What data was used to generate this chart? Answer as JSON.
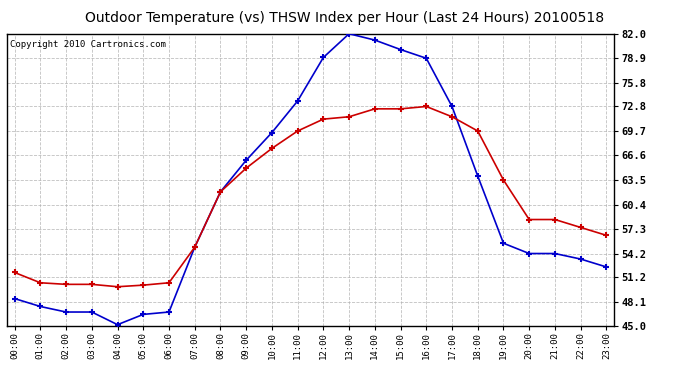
{
  "title": "Outdoor Temperature (vs) THSW Index per Hour (Last 24 Hours) 20100518",
  "copyright": "Copyright 2010 Cartronics.com",
  "hours": [
    "00:00",
    "01:00",
    "02:00",
    "03:00",
    "04:00",
    "05:00",
    "06:00",
    "07:00",
    "08:00",
    "09:00",
    "10:00",
    "11:00",
    "12:00",
    "13:00",
    "14:00",
    "15:00",
    "16:00",
    "17:00",
    "18:00",
    "19:00",
    "20:00",
    "21:00",
    "22:00",
    "23:00"
  ],
  "blue_thsw": [
    48.5,
    47.5,
    46.8,
    46.8,
    45.2,
    46.5,
    46.8,
    55.0,
    62.0,
    66.0,
    69.5,
    73.5,
    79.0,
    82.0,
    81.2,
    80.0,
    78.9,
    72.8,
    64.0,
    55.5,
    54.2,
    54.2,
    53.5,
    52.5
  ],
  "red_temp": [
    51.8,
    50.5,
    50.3,
    50.3,
    50.0,
    50.2,
    50.5,
    55.0,
    62.0,
    65.0,
    67.5,
    69.7,
    71.2,
    71.5,
    72.5,
    72.5,
    72.8,
    71.5,
    69.7,
    63.5,
    58.5,
    58.5,
    57.5,
    56.5
  ],
  "ylim": [
    45.0,
    82.0
  ],
  "yticks": [
    45.0,
    48.1,
    51.2,
    54.2,
    57.3,
    60.4,
    63.5,
    66.6,
    69.7,
    72.8,
    75.8,
    78.9,
    82.0
  ],
  "blue_color": "#0000cc",
  "red_color": "#cc0000",
  "bg_color": "#ffffff",
  "grid_color": "#b0b0b0"
}
